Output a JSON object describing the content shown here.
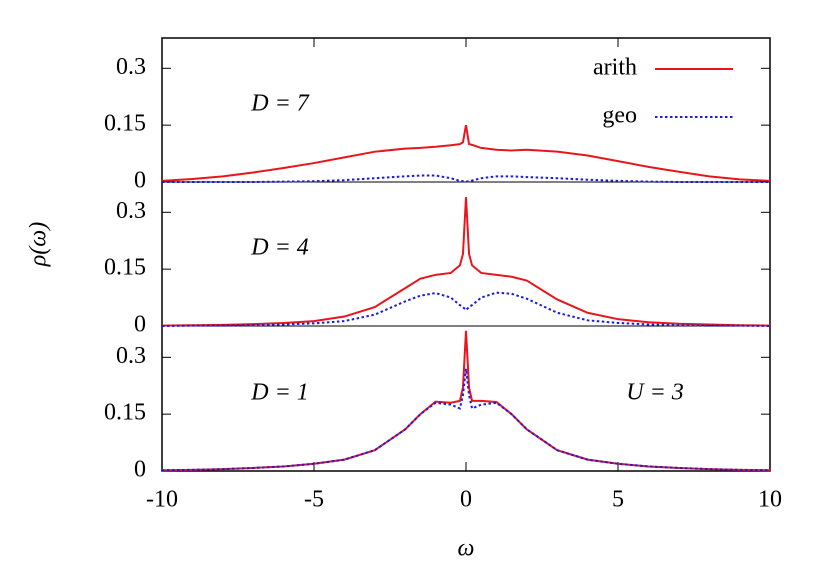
{
  "chart_data": [
    {
      "type": "line",
      "legend": true,
      "zero_line": true,
      "annotations": [
        "D = 7"
      ],
      "x": [
        -10,
        -9,
        -8,
        -7,
        -6,
        -5,
        -4,
        -3,
        -2,
        -1.5,
        -1,
        -0.5,
        -0.2,
        -0.1,
        0,
        0.1,
        0.2,
        0.5,
        1,
        1.5,
        2,
        3,
        4,
        5,
        6,
        7,
        8,
        9,
        10
      ],
      "series": [
        {
          "name": "arith",
          "color": "#e8161c",
          "dash": false,
          "values": [
            0.003,
            0.008,
            0.015,
            0.025,
            0.037,
            0.05,
            0.065,
            0.08,
            0.088,
            0.09,
            0.093,
            0.097,
            0.1,
            0.105,
            0.15,
            0.1,
            0.098,
            0.09,
            0.085,
            0.083,
            0.085,
            0.08,
            0.07,
            0.055,
            0.04,
            0.027,
            0.015,
            0.007,
            0.003
          ]
        },
        {
          "name": "geo",
          "color": "#1a1ae6",
          "dash": true,
          "values": [
            0,
            0,
            0,
            0,
            0.001,
            0.002,
            0.005,
            0.01,
            0.015,
            0.017,
            0.017,
            0.01,
            0.003,
            0.002,
            0.001,
            0.002,
            0.004,
            0.01,
            0.015,
            0.015,
            0.013,
            0.01,
            0.006,
            0.003,
            0.001,
            0,
            0,
            0,
            0
          ]
        }
      ],
      "xlim": [
        -10,
        10
      ],
      "ylim": [
        0,
        0.38
      ],
      "yticks": [
        0,
        0.15,
        0.3
      ]
    },
    {
      "type": "line",
      "legend": false,
      "zero_line": true,
      "annotations": [
        "D = 4"
      ],
      "ylabel": "ρ(ω)",
      "x": [
        -10,
        -9,
        -8,
        -7,
        -6,
        -5,
        -4,
        -3,
        -2,
        -1.5,
        -1,
        -0.5,
        -0.2,
        -0.1,
        0,
        0.1,
        0.2,
        0.5,
        1,
        1.5,
        2,
        3,
        4,
        5,
        6,
        7,
        8,
        9,
        10
      ],
      "series": [
        {
          "name": "arith",
          "color": "#e8161c",
          "dash": false,
          "values": [
            0.001,
            0.002,
            0.003,
            0.005,
            0.008,
            0.013,
            0.025,
            0.05,
            0.1,
            0.125,
            0.135,
            0.14,
            0.16,
            0.19,
            0.34,
            0.19,
            0.16,
            0.14,
            0.135,
            0.13,
            0.12,
            0.07,
            0.035,
            0.018,
            0.01,
            0.006,
            0.004,
            0.002,
            0.001
          ]
        },
        {
          "name": "geo",
          "color": "#1a1ae6",
          "dash": true,
          "values": [
            0,
            0.001,
            0.001,
            0.002,
            0.004,
            0.007,
            0.013,
            0.03,
            0.065,
            0.08,
            0.087,
            0.075,
            0.055,
            0.05,
            0.042,
            0.05,
            0.055,
            0.075,
            0.088,
            0.085,
            0.072,
            0.035,
            0.015,
            0.008,
            0.004,
            0.002,
            0.001,
            0.001,
            0
          ]
        }
      ],
      "xlim": [
        -10,
        10
      ],
      "ylim": [
        0,
        0.38
      ],
      "yticks": [
        0,
        0.15,
        0.3
      ]
    },
    {
      "type": "line",
      "legend": false,
      "zero_line": false,
      "annotations": [
        "D = 1",
        "U = 3"
      ],
      "xlabel": "ω",
      "x": [
        -10,
        -9,
        -8,
        -7,
        -6,
        -5,
        -4,
        -3,
        -2,
        -1.5,
        -1,
        -0.5,
        -0.2,
        -0.1,
        0,
        0.1,
        0.2,
        0.5,
        1,
        1.5,
        2,
        3,
        4,
        5,
        6,
        7,
        8,
        9,
        10
      ],
      "series": [
        {
          "name": "arith",
          "color": "#e8161c",
          "dash": false,
          "values": [
            0.002,
            0.003,
            0.005,
            0.008,
            0.012,
            0.019,
            0.03,
            0.055,
            0.11,
            0.15,
            0.183,
            0.18,
            0.185,
            0.22,
            0.37,
            0.22,
            0.185,
            0.185,
            0.182,
            0.15,
            0.11,
            0.055,
            0.03,
            0.019,
            0.012,
            0.008,
            0.005,
            0.003,
            0.002
          ]
        },
        {
          "name": "geo",
          "color": "#1a1ae6",
          "dash": true,
          "values": [
            0.002,
            0.003,
            0.005,
            0.008,
            0.012,
            0.019,
            0.03,
            0.055,
            0.11,
            0.15,
            0.18,
            0.175,
            0.165,
            0.2,
            0.27,
            0.2,
            0.165,
            0.175,
            0.18,
            0.15,
            0.11,
            0.055,
            0.03,
            0.019,
            0.012,
            0.008,
            0.005,
            0.003,
            0.002
          ]
        }
      ],
      "xlim": [
        -10,
        10
      ],
      "ylim": [
        0,
        0.38
      ],
      "yticks": [
        0,
        0.15,
        0.3
      ],
      "xticks": [
        -10,
        -5,
        0,
        5,
        10
      ]
    }
  ]
}
